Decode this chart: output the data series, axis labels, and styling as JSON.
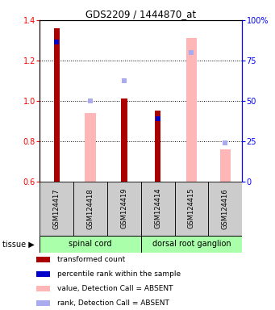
{
  "title": "GDS2209 / 1444870_at",
  "samples": [
    "GSM124417",
    "GSM124418",
    "GSM124419",
    "GSM124414",
    "GSM124415",
    "GSM124416"
  ],
  "red_values": [
    1.36,
    null,
    1.01,
    0.95,
    null,
    null
  ],
  "pink_values": [
    null,
    0.94,
    null,
    null,
    1.31,
    0.76
  ],
  "blue_rank_values": [
    1.29,
    null,
    null,
    0.91,
    null,
    null
  ],
  "light_blue_rank_values": [
    null,
    1.0,
    1.1,
    null,
    1.24,
    0.79
  ],
  "ylim": [
    0.6,
    1.4
  ],
  "yticks_left": [
    0.6,
    0.8,
    1.0,
    1.2,
    1.4
  ],
  "right_ylim": [
    0,
    100
  ],
  "right_yticks": [
    0,
    25,
    50,
    75,
    100
  ],
  "right_yticklabels": [
    "0",
    "25",
    "50",
    "75",
    "100%"
  ],
  "red_bar_width": 0.18,
  "pink_bar_width": 0.32,
  "red_color": "#AA0000",
  "pink_color": "#FFB6B6",
  "blue_color": "#0000CC",
  "light_blue_color": "#AAAAEE",
  "tissue_green": "#AAFFAA",
  "bg_gray": "#CCCCCC",
  "spinal_cord_label": "spinal cord",
  "drg_label": "dorsal root ganglion",
  "tissue_label": "tissue ▶",
  "legend_items": [
    {
      "color": "#AA0000",
      "label": "transformed count"
    },
    {
      "color": "#0000CC",
      "label": "percentile rank within the sample"
    },
    {
      "color": "#FFB6B6",
      "label": "value, Detection Call = ABSENT"
    },
    {
      "color": "#AAAAEE",
      "label": "rank, Detection Call = ABSENT"
    }
  ]
}
